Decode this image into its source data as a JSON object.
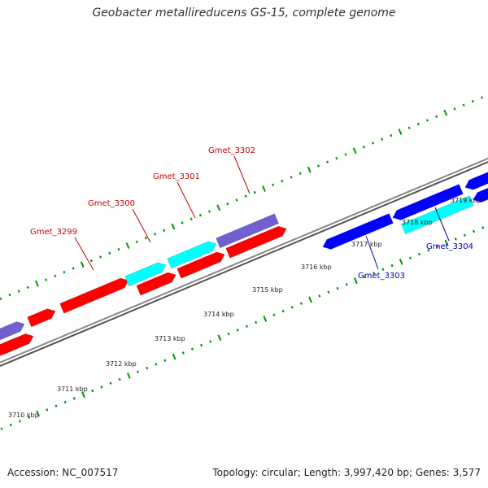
{
  "title": "Geobacter metallireducens GS-15, complete genome",
  "footer": {
    "accession": "Accession: NC_007517",
    "topology": "Topology: circular; Length: 3,997,420 bp; Genes: 3,577"
  },
  "colors": {
    "forward_cds": "#ff0000",
    "forward_hypothetical": "#00ffff",
    "forward_other": "#7060d0",
    "reverse_cds": "#0000ff",
    "reverse_hypothetical": "#00ffff",
    "backbone": "#888888",
    "tick": "#009900",
    "label_forward": "#cc0000",
    "label_reverse": "#0000aa"
  },
  "kbp_labels": [
    {
      "text": "3710 kbp",
      "kbp": 3710
    },
    {
      "text": "3711 kbp",
      "kbp": 3711
    },
    {
      "text": "3712 kbp",
      "kbp": 3712
    },
    {
      "text": "3713 kbp",
      "kbp": 3713
    },
    {
      "text": "3714 kbp",
      "kbp": 3714
    },
    {
      "text": "3715 kbp",
      "kbp": 3715
    },
    {
      "text": "3716 kbp",
      "kbp": 3716
    },
    {
      "text": "3717 kbp",
      "kbp": 3717
    },
    {
      "text": "3718 kbp",
      "kbp": 3718
    },
    {
      "text": "3719 kbp",
      "kbp": 3719
    }
  ],
  "gene_labels": [
    {
      "text": "Gmet_3299",
      "strand": "forward"
    },
    {
      "text": "Gmet_3300",
      "strand": "forward"
    },
    {
      "text": "Gmet_3301",
      "strand": "forward"
    },
    {
      "text": "Gmet_3302",
      "strand": "forward"
    },
    {
      "text": "Gmet_3303",
      "strand": "reverse"
    },
    {
      "text": "Gmet_3304",
      "strand": "reverse"
    }
  ]
}
